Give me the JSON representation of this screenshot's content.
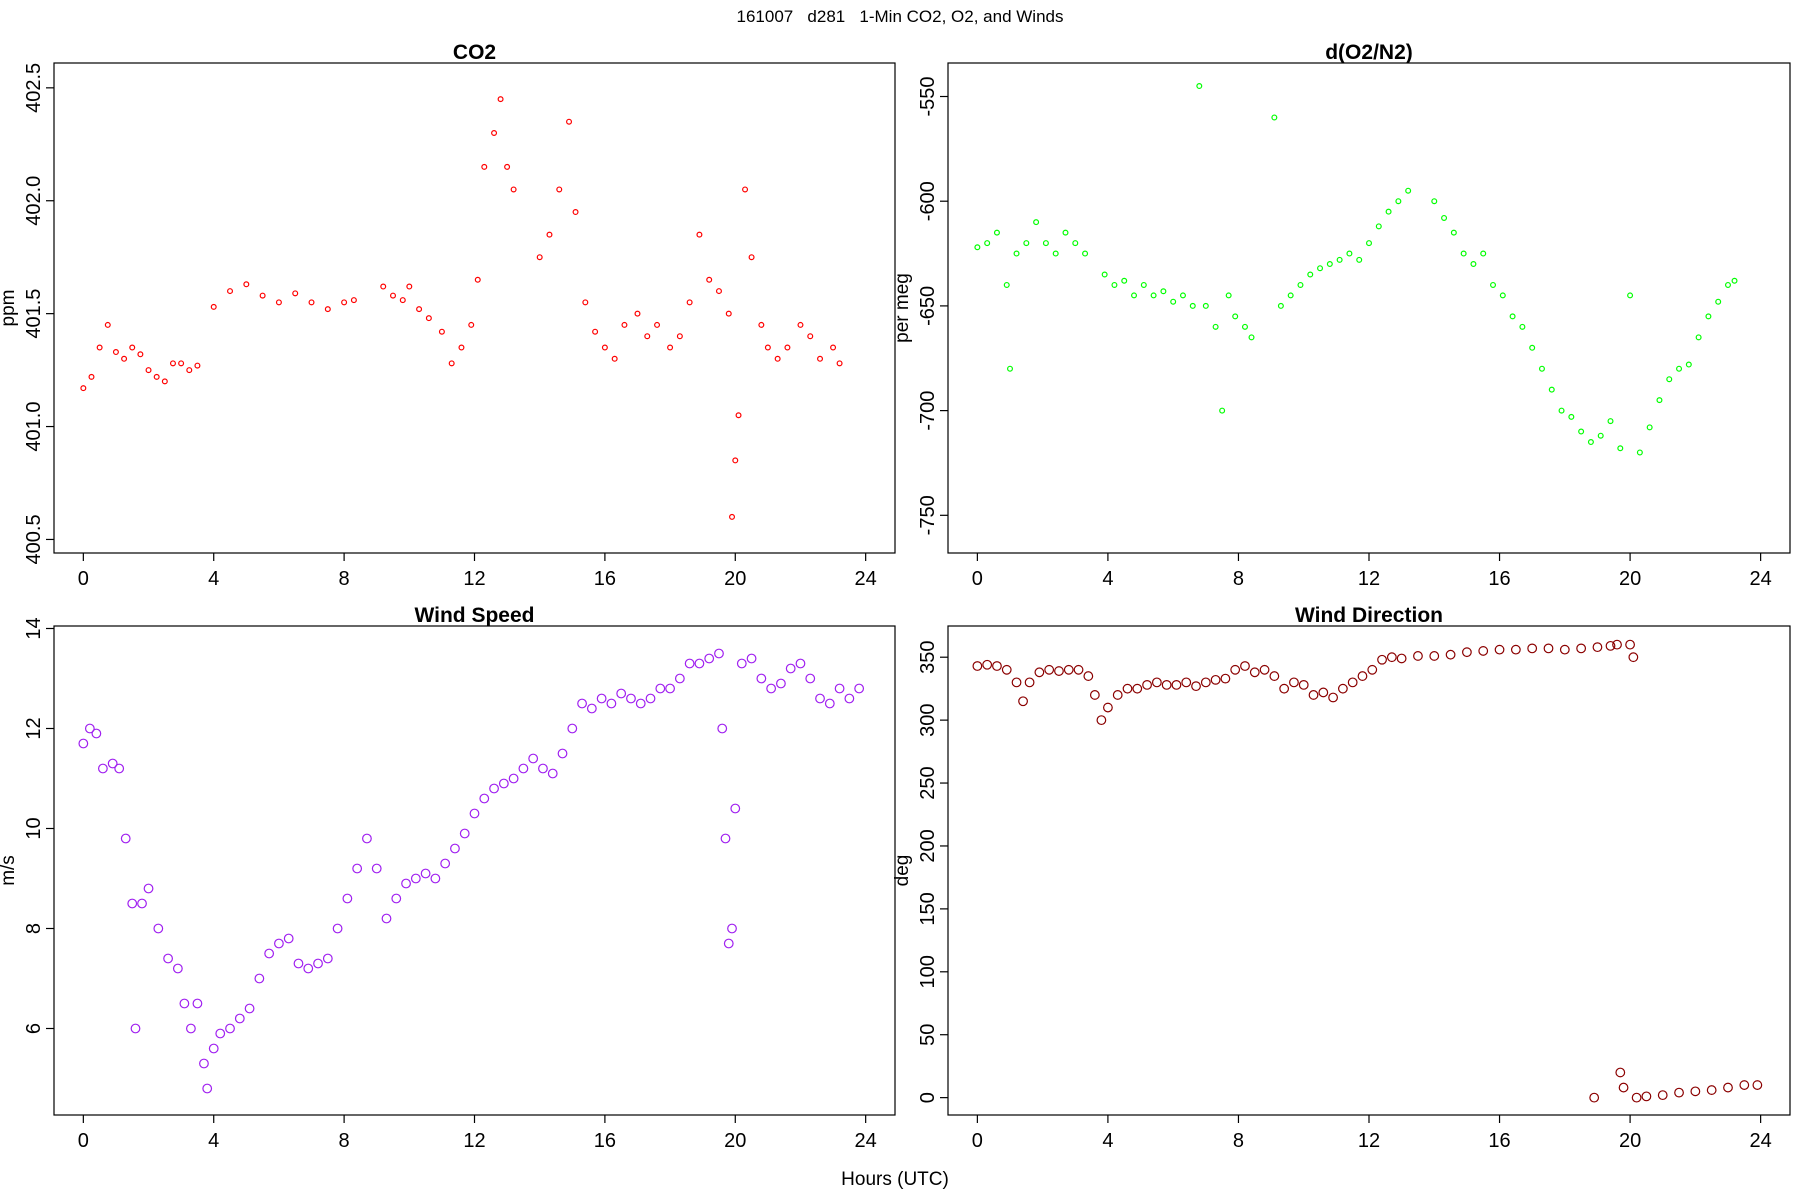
{
  "title": "161007   d281   1-Min CO2, O2, and Winds",
  "xlabel": "Hours (UTC)",
  "chart_data": [
    {
      "type": "scatter",
      "title": "CO2",
      "ylabel": "ppm",
      "color": "#ff0000",
      "xlim": [
        -0.9,
        24.9
      ],
      "xticks": [
        0,
        4,
        8,
        12,
        16,
        20,
        24
      ],
      "ylim": [
        400.44,
        402.61
      ],
      "yticks": [
        400.5,
        {
          "value": 401,
          "label": "401.0"
        },
        401.5,
        {
          "value": 402,
          "label": "402.0"
        },
        402.5
      ],
      "x": [
        0,
        0.25,
        0.5,
        0.75,
        1,
        1.25,
        1.5,
        1.75,
        2,
        2.25,
        2.5,
        2.75,
        3,
        3.25,
        3.5,
        4,
        4.5,
        5,
        5.5,
        6,
        6.5,
        7,
        7.5,
        8,
        8.3,
        9.2,
        9.5,
        9.8,
        10,
        10.3,
        10.6,
        11,
        11.3,
        11.6,
        11.9,
        12.1,
        12.3,
        12.6,
        12.8,
        13,
        13.2,
        14,
        14.3,
        14.6,
        14.9,
        15.1,
        15.4,
        15.7,
        16,
        16.3,
        16.6,
        17,
        17.3,
        17.6,
        18,
        18.3,
        18.6,
        18.9,
        19.2,
        19.5,
        19.8,
        19.9,
        20,
        20.1,
        20.3,
        20.5,
        20.8,
        21,
        21.3,
        21.6,
        22,
        22.3,
        22.6,
        23,
        23.2
      ],
      "values": [
        401.17,
        401.22,
        401.35,
        401.45,
        401.33,
        401.3,
        401.35,
        401.32,
        401.25,
        401.22,
        401.2,
        401.28,
        401.28,
        401.25,
        401.27,
        401.53,
        401.6,
        401.63,
        401.58,
        401.55,
        401.59,
        401.55,
        401.52,
        401.55,
        401.56,
        401.62,
        401.58,
        401.56,
        401.62,
        401.52,
        401.48,
        401.42,
        401.28,
        401.35,
        401.45,
        401.65,
        402.15,
        402.3,
        402.45,
        402.15,
        402.05,
        401.75,
        401.85,
        402.05,
        402.35,
        401.95,
        401.55,
        401.42,
        401.35,
        401.3,
        401.45,
        401.5,
        401.4,
        401.45,
        401.35,
        401.4,
        401.55,
        401.85,
        401.65,
        401.6,
        401.5,
        400.6,
        400.85,
        401.05,
        402.05,
        401.75,
        401.45,
        401.35,
        401.3,
        401.35,
        401.45,
        401.4,
        401.3,
        401.35,
        401.28
      ]
    },
    {
      "type": "scatter",
      "title": "d(O2/N2)",
      "ylabel": "per meg",
      "color": "#00ff00",
      "xlim": [
        -0.9,
        24.9
      ],
      "xticks": [
        0,
        4,
        8,
        12,
        16,
        20,
        24
      ],
      "ylim": [
        -768,
        -534
      ],
      "yticks": [
        -750,
        -700,
        -650,
        -600,
        -550
      ],
      "x": [
        0,
        0.3,
        0.6,
        0.9,
        1,
        1.2,
        1.5,
        1.8,
        2.1,
        2.4,
        2.7,
        3,
        3.3,
        3.9,
        4.2,
        4.5,
        4.8,
        5.1,
        5.4,
        5.7,
        6,
        6.3,
        6.6,
        6.8,
        7,
        7.3,
        7.5,
        7.7,
        7.9,
        8.2,
        8.4,
        9.1,
        9.3,
        9.6,
        9.9,
        10.2,
        10.5,
        10.8,
        11.1,
        11.4,
        11.7,
        12,
        12.3,
        12.6,
        12.9,
        13.2,
        14,
        14.3,
        14.6,
        14.9,
        15.2,
        15.5,
        15.8,
        16.1,
        16.4,
        16.7,
        17,
        17.3,
        17.6,
        17.9,
        18.2,
        18.5,
        18.8,
        19.1,
        19.4,
        19.7,
        20,
        20.3,
        20.6,
        20.9,
        21.2,
        21.5,
        21.8,
        22.1,
        22.4,
        22.7,
        23,
        23.2
      ],
      "values": [
        -622,
        -620,
        -615,
        -640,
        -680,
        -625,
        -620,
        -610,
        -620,
        -625,
        -615,
        -620,
        -625,
        -635,
        -640,
        -638,
        -645,
        -640,
        -645,
        -643,
        -648,
        -645,
        -650,
        -545,
        -650,
        -660,
        -700,
        -645,
        -655,
        -660,
        -665,
        -560,
        -650,
        -645,
        -640,
        -635,
        -632,
        -630,
        -628,
        -625,
        -628,
        -620,
        -612,
        -605,
        -600,
        -595,
        -600,
        -608,
        -615,
        -625,
        -630,
        -625,
        -640,
        -645,
        -655,
        -660,
        -670,
        -680,
        -690,
        -700,
        -703,
        -710,
        -715,
        -712,
        -705,
        -718,
        -645,
        -720,
        -708,
        -695,
        -685,
        -680,
        -678,
        -665,
        -655,
        -648,
        -640,
        -638
      ]
    },
    {
      "type": "scatter",
      "title": "Wind Speed",
      "ylabel": "m/s",
      "color": "#a020f0",
      "xlim": [
        -0.9,
        24.9
      ],
      "xticks": [
        0,
        4,
        8,
        12,
        16,
        20,
        24
      ],
      "ylim": [
        4.27,
        14.05
      ],
      "yticks": [
        6,
        8,
        10,
        12,
        14
      ],
      "x": [
        0,
        0.2,
        0.4,
        0.6,
        0.9,
        1.1,
        1.3,
        1.5,
        1.6,
        1.8,
        2,
        2.3,
        2.6,
        2.9,
        3.1,
        3.3,
        3.5,
        3.7,
        3.8,
        4,
        4.2,
        4.5,
        4.8,
        5.1,
        5.4,
        5.7,
        6,
        6.3,
        6.6,
        6.9,
        7.2,
        7.5,
        7.8,
        8.1,
        8.4,
        8.7,
        9,
        9.3,
        9.6,
        9.9,
        10.2,
        10.5,
        10.8,
        11.1,
        11.4,
        11.7,
        12,
        12.3,
        12.6,
        12.9,
        13.2,
        13.5,
        13.8,
        14.1,
        14.4,
        14.7,
        15,
        15.3,
        15.6,
        15.9,
        16.2,
        16.5,
        16.8,
        17.1,
        17.4,
        17.7,
        18,
        18.3,
        18.6,
        18.9,
        19.2,
        19.5,
        19.6,
        19.7,
        19.8,
        19.9,
        20,
        20.2,
        20.5,
        20.8,
        21.1,
        21.4,
        21.7,
        22,
        22.3,
        22.6,
        22.9,
        23.2,
        23.5,
        23.8
      ],
      "values": [
        11.7,
        12,
        11.9,
        11.2,
        11.3,
        11.2,
        9.8,
        8.5,
        6,
        8.5,
        8.8,
        8,
        7.4,
        7.2,
        6.5,
        6,
        6.5,
        5.3,
        4.8,
        5.6,
        5.9,
        6,
        6.2,
        6.4,
        7,
        7.5,
        7.7,
        7.8,
        7.3,
        7.2,
        7.3,
        7.4,
        8,
        8.6,
        9.2,
        9.8,
        9.2,
        8.2,
        8.6,
        8.9,
        9,
        9.1,
        9,
        9.3,
        9.6,
        9.9,
        10.3,
        10.6,
        10.8,
        10.9,
        11,
        11.2,
        11.4,
        11.2,
        11.1,
        11.5,
        12,
        12.5,
        12.4,
        12.6,
        12.5,
        12.7,
        12.6,
        12.5,
        12.6,
        12.8,
        12.8,
        13,
        13.3,
        13.3,
        13.4,
        13.5,
        12,
        9.8,
        7.7,
        8,
        10.4,
        13.3,
        13.4,
        13,
        12.8,
        12.9,
        13.2,
        13.3,
        13,
        12.6,
        12.5,
        12.8,
        12.6,
        12.8
      ]
    },
    {
      "type": "scatter",
      "title": "Wind Direction",
      "ylabel": "deg",
      "color": "#8b0000",
      "xlim": [
        -0.9,
        24.9
      ],
      "xticks": [
        0,
        4,
        8,
        12,
        16,
        20,
        24
      ],
      "ylim": [
        -13.8,
        374.8
      ],
      "yticks": [
        0,
        50,
        100,
        150,
        200,
        250,
        300,
        350
      ],
      "x": [
        0,
        0.3,
        0.6,
        0.9,
        1.2,
        1.4,
        1.6,
        1.9,
        2.2,
        2.5,
        2.8,
        3.1,
        3.4,
        3.6,
        3.8,
        4,
        4.3,
        4.6,
        4.9,
        5.2,
        5.5,
        5.8,
        6.1,
        6.4,
        6.7,
        7,
        7.3,
        7.6,
        7.9,
        8.2,
        8.5,
        8.8,
        9.1,
        9.4,
        9.7,
        10,
        10.3,
        10.6,
        10.9,
        11.2,
        11.5,
        11.8,
        12.1,
        12.4,
        12.7,
        13,
        13.5,
        14,
        14.5,
        15,
        15.5,
        16,
        16.5,
        17,
        17.5,
        18,
        18.5,
        18.9,
        19,
        19.4,
        19.6,
        19.7,
        19.8,
        20,
        20.1,
        20.2,
        20.5,
        21,
        21.5,
        22,
        22.5,
        23,
        23.5,
        23.9
      ],
      "values": [
        343,
        344,
        343,
        340,
        330,
        315,
        330,
        338,
        340,
        339,
        340,
        340,
        335,
        320,
        300,
        310,
        320,
        325,
        325,
        328,
        330,
        328,
        328,
        330,
        327,
        330,
        332,
        333,
        340,
        343,
        338,
        340,
        335,
        325,
        330,
        328,
        320,
        322,
        318,
        325,
        330,
        335,
        340,
        348,
        350,
        349,
        351,
        351,
        352,
        354,
        355,
        356,
        356,
        357,
        357,
        356,
        357,
        0,
        358,
        359,
        360,
        20,
        8,
        360,
        350,
        0,
        1,
        2,
        4,
        5,
        6,
        8,
        10,
        10
      ]
    }
  ]
}
